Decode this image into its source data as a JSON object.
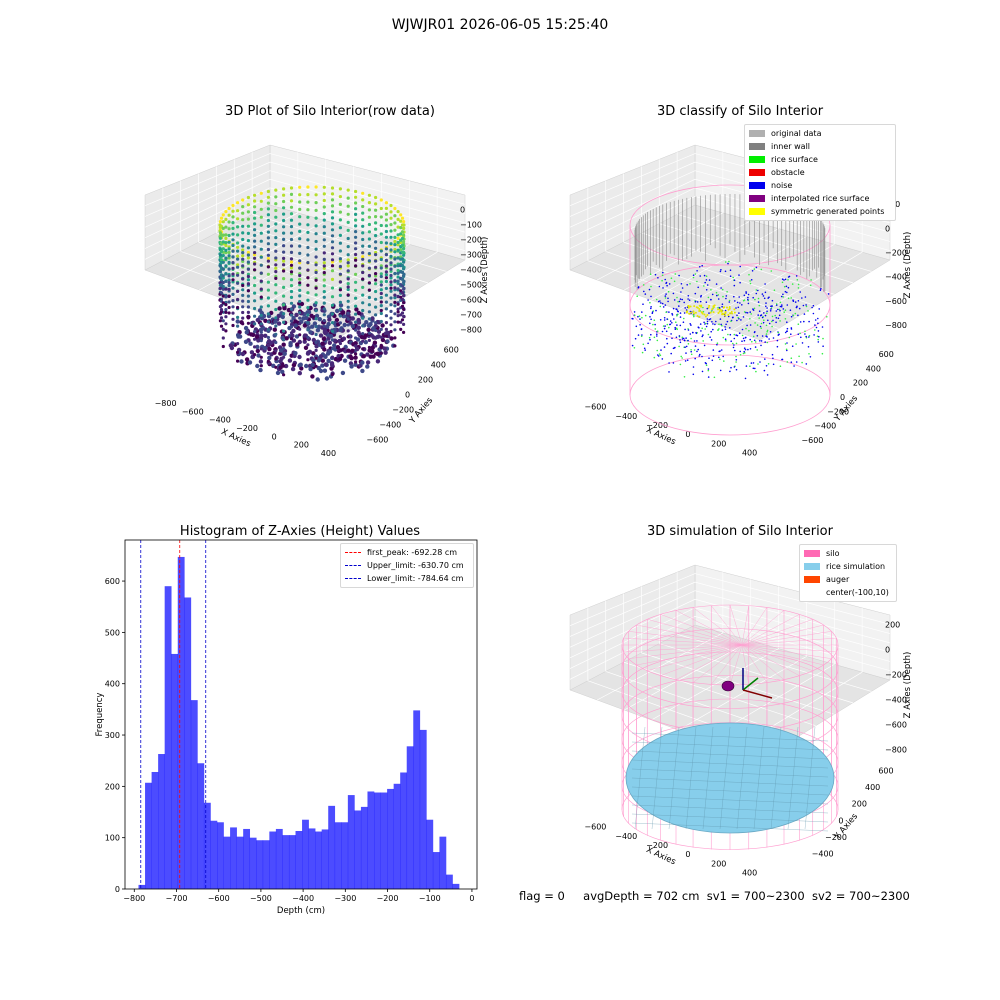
{
  "suptitle": "WJWJR01 2026-06-05 15:25:40",
  "panels": {
    "raw": {
      "title": "3D Plot of Silo Interior(row data)",
      "xlabel": "X Axies",
      "ylabel": "Y Axies",
      "zlabel": "Z Axies (Depth)",
      "xticks": [
        "−800",
        "−600",
        "−400",
        "−200",
        "0",
        "200",
        "400"
      ],
      "yticks": [
        "−600",
        "−400",
        "−200",
        "0",
        "200",
        "400",
        "600"
      ],
      "zticks": [
        "0",
        "−100",
        "−200",
        "−300",
        "−400",
        "−500",
        "−600",
        "−700",
        "−800"
      ]
    },
    "classify": {
      "title": "3D classify of Silo Interior",
      "xlabel": "X Axies",
      "ylabel": "Y Axies",
      "zlabel": "Z Axies (Depth)",
      "xticks": [
        "−600",
        "−400",
        "−200",
        "0",
        "200",
        "400"
      ],
      "yticks": [
        "−600",
        "−400",
        "−200",
        "0",
        "200",
        "400",
        "600"
      ],
      "zticks": [
        "200",
        "0",
        "−200",
        "−400",
        "−600",
        "−800"
      ],
      "legend": [
        {
          "label": "original data",
          "color": "#b0b0b0"
        },
        {
          "label": "inner wall",
          "color": "#808080"
        },
        {
          "label": "rice surface",
          "color": "#00ee00"
        },
        {
          "label": "obstacle",
          "color": "#ee0000"
        },
        {
          "label": "noise",
          "color": "#0000ee"
        },
        {
          "label": "interpolated rice surface",
          "color": "#800080"
        },
        {
          "label": "symmetric generated points",
          "color": "#ffff00"
        }
      ]
    },
    "simulation": {
      "title": "3D simulation of Silo Interior",
      "xlabel": "X Axies",
      "ylabel": "Y Axies",
      "zlabel": "Z Axies (Depth)",
      "xticks": [
        "−600",
        "−400",
        "−200",
        "0",
        "200",
        "400"
      ],
      "yticks": [
        "−400",
        "−200",
        "0",
        "200",
        "400",
        "600"
      ],
      "zticks": [
        "200",
        "0",
        "−200",
        "−400",
        "−600",
        "−800"
      ],
      "legend": [
        {
          "label": "silo",
          "color": "#ff69b4"
        },
        {
          "label": "rice simulation",
          "color": "#87ceeb"
        },
        {
          "label": "auger",
          "color": "#ff4500"
        },
        {
          "label": "center(-100,10)",
          "color": ""
        }
      ]
    }
  },
  "chart_data": {
    "type": "bar",
    "title": "Histogram of Z-Axies (Height) Values",
    "xlabel": "Depth (cm)",
    "ylabel": "Frequency",
    "xlim": [
      -822,
      12
    ],
    "ylim": [
      0,
      680
    ],
    "bar_color": "#0000ff",
    "bin_width": 15.5,
    "bin_starts": [
      -790,
      -774.5,
      -759,
      -743.5,
      -728,
      -712.5,
      -697,
      -681.5,
      -666,
      -650.5,
      -635,
      -619.5,
      -604,
      -588.5,
      -573,
      -557.5,
      -542,
      -526.5,
      -511,
      -495.5,
      -480,
      -464.5,
      -449,
      -433.5,
      -418,
      -402.5,
      -387,
      -371.5,
      -356,
      -340.5,
      -325,
      -309.5,
      -294,
      -278.5,
      -263,
      -247.5,
      -232,
      -216.5,
      -201,
      -185.5,
      -170,
      -154.5,
      -139,
      -123.5,
      -108,
      -92.5,
      -77,
      -61.5,
      -46,
      -30.5,
      -15
    ],
    "values": [
      8,
      207,
      228,
      263,
      590,
      458,
      647,
      568,
      368,
      245,
      168,
      133,
      130,
      102,
      120,
      102,
      117,
      100,
      95,
      95,
      112,
      117,
      105,
      105,
      113,
      135,
      118,
      112,
      116,
      162,
      130,
      130,
      183,
      153,
      160,
      190,
      188,
      188,
      195,
      205,
      227,
      278,
      348,
      310,
      135,
      72,
      102,
      28,
      10,
      0,
      0
    ],
    "xticks": [
      "−800",
      "−700",
      "−600",
      "−500",
      "−400",
      "−300",
      "−200",
      "−100",
      "0"
    ],
    "xtick_values": [
      -800,
      -700,
      -600,
      -500,
      -400,
      -300,
      -200,
      -100,
      0
    ],
    "yticks": [
      "0",
      "100",
      "200",
      "300",
      "400",
      "500",
      "600"
    ],
    "ytick_values": [
      0,
      100,
      200,
      300,
      400,
      500,
      600
    ],
    "vlines": [
      {
        "label": "first_peak: -692.28 cm",
        "x": -692.28,
        "color": "#ff0000"
      },
      {
        "label": "Upper_limit: -630.70 cm",
        "x": -630.7,
        "color": "#0000cc"
      },
      {
        "label": "Lower_limit: -784.64 cm",
        "x": -784.64,
        "color": "#0000cc"
      }
    ],
    "legend_position": "top-right"
  },
  "footer": {
    "flag": "flag = 0",
    "avg": "avgDepth = 702 cm",
    "sv1": "sv1 = 700~2300",
    "sv2": "sv2 = 700~2300"
  }
}
